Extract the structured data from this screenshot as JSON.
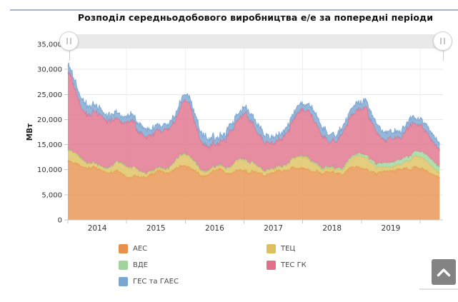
{
  "page": {
    "background": "#ffffff",
    "top_divider_color": "#a8b2cd"
  },
  "chart_data": {
    "type": "area",
    "stacked": true,
    "title": "Розподіл середньодобового виробництва е/е за попередні періоди",
    "xlabel": "",
    "ylabel": "МВт",
    "ylim": [
      0,
      35000
    ],
    "ytick_step": 5000,
    "ytick_labels": [
      "0",
      "5,000",
      "10,000",
      "15,000",
      "20,000",
      "25,000",
      "30,000",
      "35,000"
    ],
    "xtick_labels": [
      "2014",
      "2015",
      "2016",
      "2017",
      "2018",
      "2019"
    ],
    "x_axis_years": [
      2014,
      2020
    ],
    "points_per_year": 12,
    "grid": true,
    "legend_position": "bottom",
    "series": [
      {
        "name": "АЕС",
        "slug": "aes",
        "color": "#E8914C",
        "values": [
          11800,
          11500,
          11000,
          10600,
          10400,
          10500,
          10300,
          9900,
          9400,
          9600,
          10000,
          9400,
          8600,
          8400,
          8900,
          8400,
          8600,
          9000,
          9600,
          9900,
          9200,
          9500,
          10200,
          10800,
          10800,
          10300,
          9800,
          9000,
          8600,
          9300,
          9800,
          10200,
          9600,
          9000,
          9700,
          10000,
          9800,
          9400,
          9700,
          9500,
          8900,
          9200,
          9400,
          9900,
          9700,
          9900,
          10400,
          10200,
          10200,
          10100,
          9600,
          9700,
          9200,
          9500,
          9500,
          9400,
          9000,
          9800,
          10600,
          10500,
          10400,
          10000,
          9700,
          9200,
          9500,
          9800,
          9700,
          9900,
          10100,
          10300,
          9900,
          10600,
          10300,
          9900,
          9400,
          8900,
          8300
        ]
      },
      {
        "name": "ТЕЦ",
        "slug": "tets",
        "color": "#DFC05F",
        "values": [
          2200,
          2100,
          1800,
          1300,
          900,
          800,
          700,
          700,
          800,
          1200,
          1700,
          2000,
          2000,
          1900,
          1500,
          1000,
          700,
          600,
          600,
          600,
          700,
          1100,
          1600,
          2100,
          2300,
          2100,
          1700,
          1100,
          800,
          700,
          700,
          700,
          800,
          1200,
          1700,
          2100,
          2200,
          2000,
          1600,
          1100,
          800,
          700,
          700,
          700,
          800,
          1200,
          1800,
          2200,
          2300,
          2200,
          1800,
          1200,
          800,
          700,
          700,
          700,
          900,
          1300,
          1800,
          2200,
          2400,
          2200,
          1800,
          1200,
          900,
          800,
          800,
          800,
          900,
          1300,
          1900,
          2200,
          2200,
          2000,
          1700,
          1200,
          900
        ]
      },
      {
        "name": "ВДЕ",
        "slug": "vde",
        "color": "#9FD49C",
        "values": [
          100,
          100,
          100,
          100,
          100,
          100,
          100,
          100,
          100,
          100,
          100,
          100,
          100,
          100,
          100,
          100,
          100,
          100,
          100,
          100,
          100,
          100,
          100,
          100,
          120,
          120,
          120,
          120,
          120,
          120,
          120,
          120,
          120,
          120,
          120,
          120,
          150,
          150,
          150,
          150,
          150,
          150,
          150,
          150,
          150,
          150,
          150,
          150,
          200,
          200,
          250,
          250,
          300,
          300,
          300,
          300,
          350,
          350,
          350,
          400,
          500,
          550,
          600,
          700,
          800,
          900,
          950,
          1000,
          1000,
          900,
          900,
          1000,
          1100,
          1200,
          1300,
          1300,
          1200
        ]
      },
      {
        "name": "ТЕС ГК",
        "slug": "tes-hk",
        "color": "#E0708A",
        "values": [
          15500,
          14000,
          11500,
          10000,
          9500,
          9800,
          10500,
          10000,
          9300,
          9000,
          8500,
          8000,
          8700,
          9500,
          8000,
          7500,
          7300,
          7000,
          7500,
          7000,
          7800,
          7600,
          8000,
          9500,
          10800,
          10200,
          7800,
          5800,
          5200,
          4600,
          4600,
          4400,
          5300,
          6900,
          7200,
          8200,
          9100,
          8900,
          7500,
          6300,
          6000,
          5300,
          5000,
          5200,
          5600,
          6300,
          7300,
          9000,
          9000,
          9300,
          8900,
          7400,
          6600,
          5200,
          5000,
          5400,
          6900,
          7400,
          8200,
          8500,
          8900,
          9400,
          7700,
          6400,
          5100,
          4400,
          4900,
          4600,
          4400,
          5200,
          6400,
          5500,
          5200,
          4800,
          4000,
          3800,
          3400
        ]
      },
      {
        "name": "ГЕС та ГАЕС",
        "slug": "hes-ta-haes",
        "color": "#7BA5D1",
        "values": [
          1500,
          1400,
          1600,
          1900,
          1800,
          1500,
          1300,
          1200,
          1100,
          1100,
          1200,
          1300,
          1200,
          1200,
          1400,
          1600,
          1400,
          1200,
          1100,
          1000,
          1000,
          1000,
          1100,
          1200,
          1200,
          1300,
          1600,
          1900,
          1700,
          1400,
          1300,
          1200,
          1100,
          1200,
          1300,
          1300,
          1200,
          1300,
          1600,
          1800,
          1500,
          1300,
          1200,
          1100,
          1000,
          1100,
          1200,
          1300,
          1300,
          1300,
          1700,
          2000,
          1700,
          1500,
          1300,
          1200,
          1100,
          1200,
          1300,
          1400,
          1300,
          1400,
          1600,
          1800,
          1600,
          1500,
          1400,
          1300,
          1200,
          1200,
          1300,
          1300,
          1200,
          1300,
          1500,
          1400,
          1200
        ]
      }
    ]
  },
  "legend": {
    "columns": [
      [
        "aes",
        "vde",
        "hes-ta-haes"
      ],
      [
        "tets",
        "tes-hk"
      ]
    ]
  },
  "navigator": {
    "left_handle_icon": "grip-lines",
    "right_handle_icon": "grip-lines"
  },
  "scroll_button": {
    "color": "#838383",
    "icon": "chevron-up"
  }
}
